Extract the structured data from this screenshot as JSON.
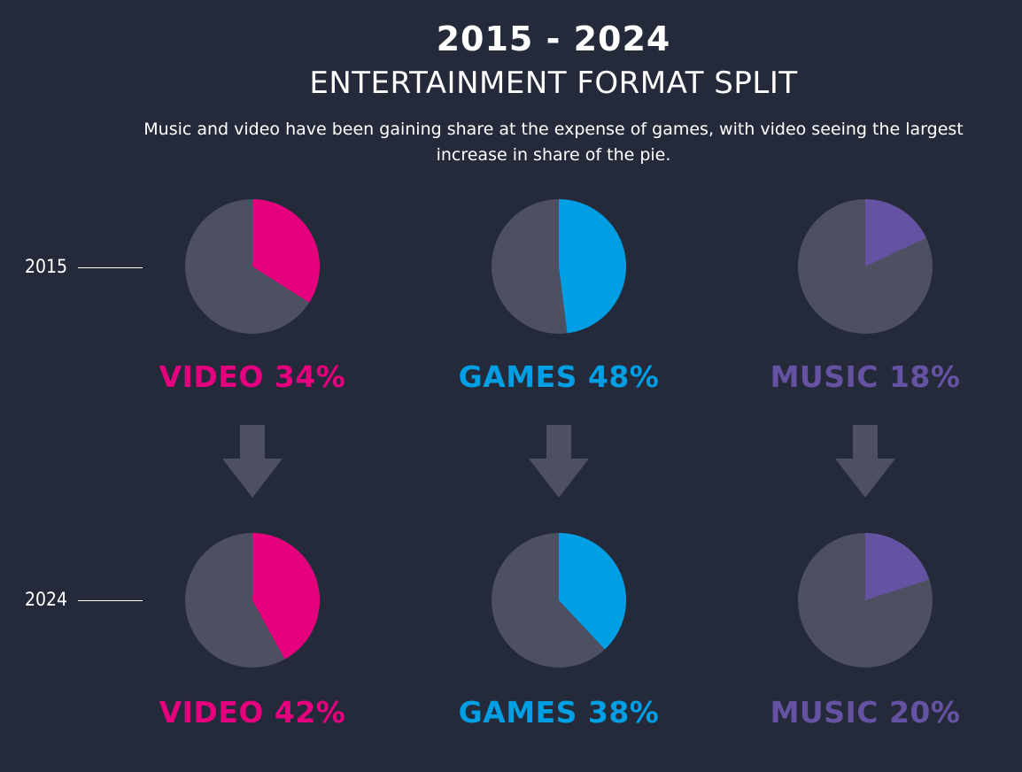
{
  "header": {
    "years": "2015 - 2024",
    "title": "ENTERTAINMENT FORMAT SPLIT",
    "subtitle": "Music and video have been gaining share at the expense of games, with video seeing the largest increase in share of the pie."
  },
  "rows": [
    {
      "year": "2015"
    },
    {
      "year": "2024"
    }
  ],
  "colors": {
    "video": "#e5007e",
    "games": "#009fe3",
    "music": "#6652a3",
    "remainder": "#4d5060",
    "arrow": "#4d5060",
    "background": "#252a3b"
  },
  "labels": {
    "r2015": {
      "video": "VIDEO 34%",
      "games": "GAMES 48%",
      "music": "MUSIC 18%"
    },
    "r2024": {
      "video": "VIDEO 42%",
      "games": "GAMES 38%",
      "music": "MUSIC 20%"
    }
  },
  "chart_data": {
    "type": "pie",
    "title": "2015 - 2024",
    "subtitle": "ENTERTAINMENT FORMAT SPLIT",
    "categories": [
      "VIDEO",
      "GAMES",
      "MUSIC"
    ],
    "series": [
      {
        "name": "2015",
        "values": [
          34,
          48,
          18
        ]
      },
      {
        "name": "2024",
        "values": [
          42,
          38,
          20
        ]
      }
    ],
    "unit": "%"
  }
}
